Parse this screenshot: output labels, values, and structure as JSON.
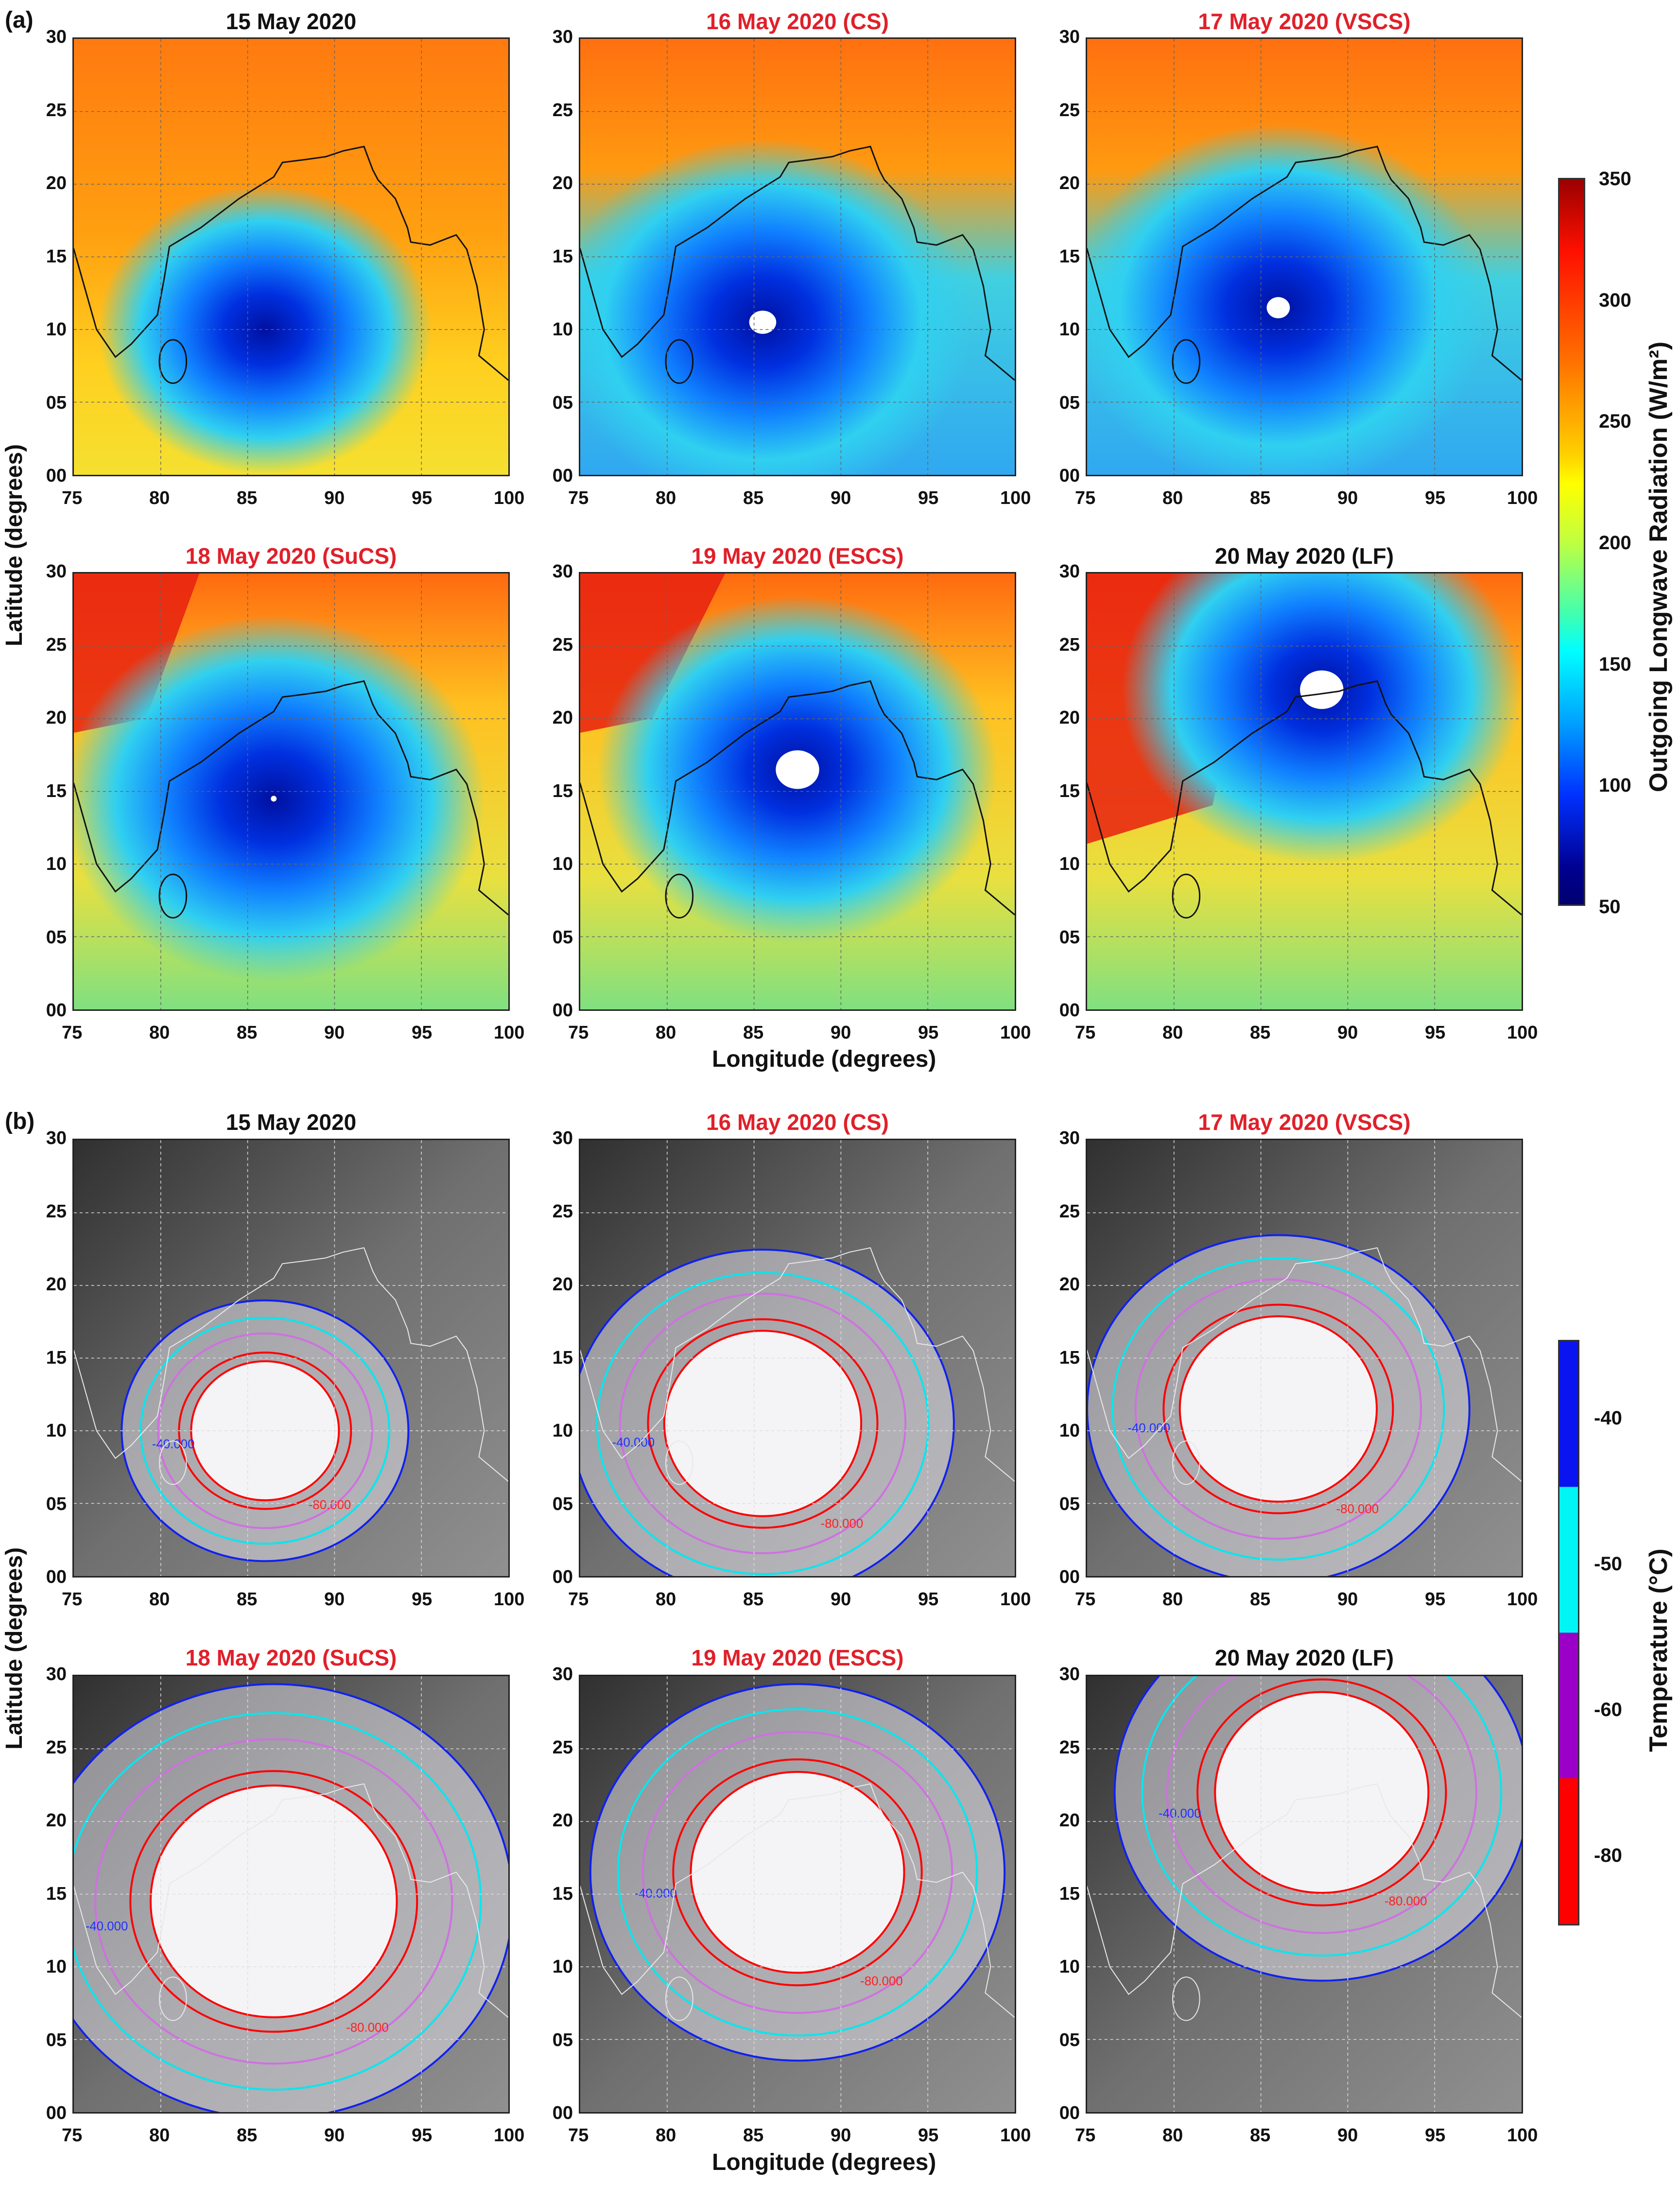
{
  "figure": {
    "part_a_label": "(a)",
    "part_b_label": "(b)",
    "xlabel": "Longitude (degrees)",
    "ylabel": "Latitude (degrees)",
    "x_ticks": [
      "75",
      "80",
      "85",
      "90",
      "95",
      "100"
    ],
    "y_ticks": [
      "00",
      "05",
      "10",
      "15",
      "20",
      "25",
      "30"
    ],
    "xlim": [
      75,
      100
    ],
    "ylim": [
      0,
      30
    ]
  },
  "panels": [
    {
      "title": "15 May 2020",
      "title_color": "#111111",
      "cyclone_center_lon_lat": [
        86,
        10
      ]
    },
    {
      "title": "16 May 2020 (CS)",
      "title_color": "#e0202a",
      "cyclone_center_lon_lat": [
        85.5,
        10.5
      ]
    },
    {
      "title": "17 May 2020 (VSCS)",
      "title_color": "#e0202a",
      "cyclone_center_lon_lat": [
        86,
        11.5
      ]
    },
    {
      "title": "18 May 2020 (SuCS)",
      "title_color": "#e0202a",
      "cyclone_center_lon_lat": [
        86.5,
        14.5
      ]
    },
    {
      "title": "19 May 2020 (ESCS)",
      "title_color": "#e0202a",
      "cyclone_center_lon_lat": [
        87.5,
        16.5
      ]
    },
    {
      "title": "20 May 2020 (LF)",
      "title_color": "#111111",
      "cyclone_center_lon_lat": [
        88.5,
        22
      ]
    }
  ],
  "colorbar_a": {
    "label": "Outgoing Longwave Radiation (W/m²)",
    "ticks": [
      "350",
      "300",
      "250",
      "200",
      "150",
      "100",
      "50"
    ],
    "range": [
      50,
      350
    ]
  },
  "colorbar_b": {
    "label": "Temperature (°C)",
    "ticks": [
      "-40",
      "-50",
      "-60",
      "-80"
    ],
    "colors": [
      "#0a14f0",
      "#00f5f5",
      "#9b00c8",
      "#ff0000"
    ]
  },
  "contour_labels": [
    "-40.000",
    "-80.000"
  ]
}
